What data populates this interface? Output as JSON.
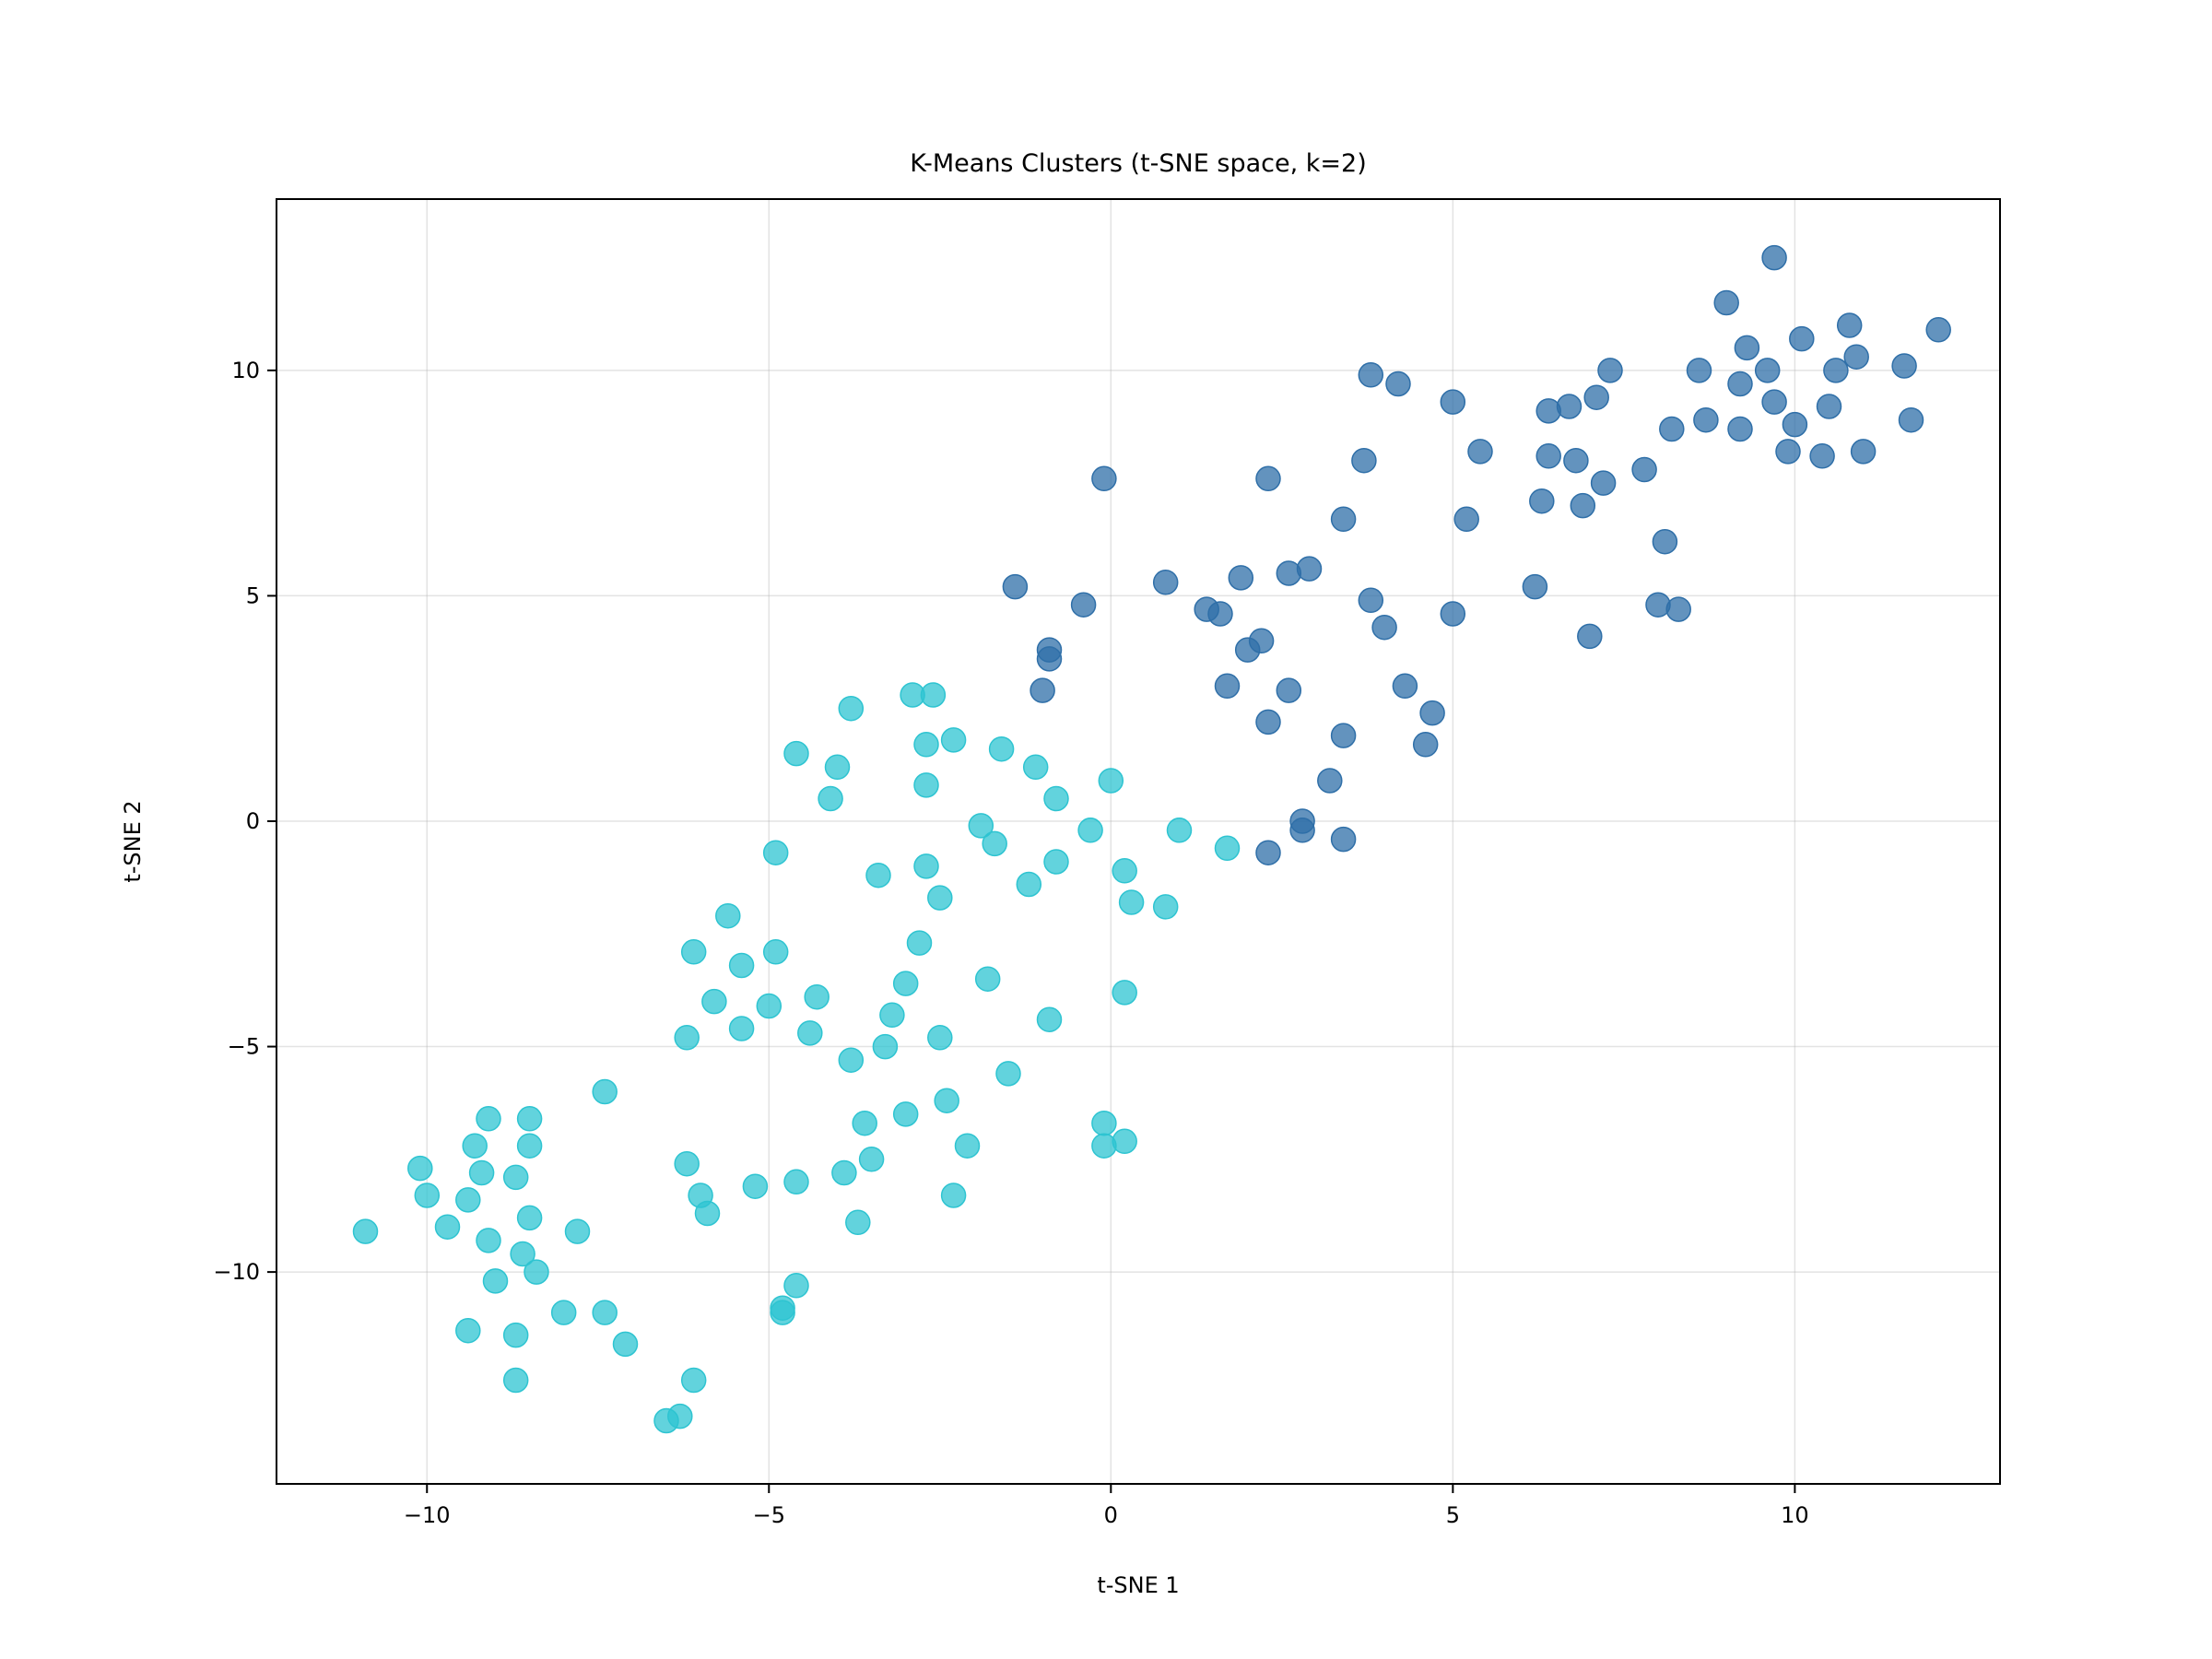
{
  "chart_data": {
    "type": "scatter",
    "title": "K-Means Clusters (t-SNE space, k=2)",
    "xlabel": "t-SNE 1",
    "ylabel": "t-SNE 2",
    "xlim": [
      -12.2,
      13.0
    ],
    "ylim": [
      -14.7,
      13.8
    ],
    "xticks": [
      -10,
      -5,
      0,
      5,
      10
    ],
    "yticks": [
      -10,
      -5,
      0,
      5,
      10
    ],
    "xtick_labels": [
      "−10",
      "−5",
      "0",
      "5",
      "10"
    ],
    "ytick_labels": [
      "−10",
      "−5",
      "0",
      "5",
      "10"
    ],
    "grid": true,
    "series": [
      {
        "color": "#2f6fa8",
        "points": [
          [
            9.7,
            12.5
          ],
          [
            9.0,
            11.5
          ],
          [
            10.8,
            11.0
          ],
          [
            12.1,
            10.9
          ],
          [
            10.1,
            10.7
          ],
          [
            9.3,
            10.5
          ],
          [
            10.9,
            10.3
          ],
          [
            11.6,
            10.1
          ],
          [
            7.3,
            10.0
          ],
          [
            8.6,
            10.0
          ],
          [
            9.6,
            10.0
          ],
          [
            10.6,
            10.0
          ],
          [
            3.8,
            9.9
          ],
          [
            4.2,
            9.7
          ],
          [
            9.2,
            9.7
          ],
          [
            7.1,
            9.4
          ],
          [
            9.7,
            9.3
          ],
          [
            5.0,
            9.3
          ],
          [
            6.7,
            9.2
          ],
          [
            6.4,
            9.1
          ],
          [
            10.5,
            9.2
          ],
          [
            8.7,
            8.9
          ],
          [
            10.0,
            8.8
          ],
          [
            11.7,
            8.9
          ],
          [
            8.2,
            8.7
          ],
          [
            9.2,
            8.7
          ],
          [
            5.4,
            8.2
          ],
          [
            9.9,
            8.2
          ],
          [
            10.4,
            8.1
          ],
          [
            11.0,
            8.2
          ],
          [
            6.4,
            8.1
          ],
          [
            6.8,
            8.0
          ],
          [
            3.7,
            8.0
          ],
          [
            7.8,
            7.8
          ],
          [
            -0.1,
            7.6
          ],
          [
            2.3,
            7.6
          ],
          [
            7.2,
            7.5
          ],
          [
            6.3,
            7.1
          ],
          [
            6.9,
            7.0
          ],
          [
            3.4,
            6.7
          ],
          [
            5.2,
            6.7
          ],
          [
            8.1,
            6.2
          ],
          [
            2.9,
            5.6
          ],
          [
            2.6,
            5.5
          ],
          [
            1.9,
            5.4
          ],
          [
            0.8,
            5.3
          ],
          [
            -1.4,
            5.2
          ],
          [
            6.2,
            5.2
          ],
          [
            -0.4,
            4.8
          ],
          [
            3.8,
            4.9
          ],
          [
            8.0,
            4.8
          ],
          [
            8.3,
            4.7
          ],
          [
            1.4,
            4.7
          ],
          [
            1.6,
            4.6
          ],
          [
            5.0,
            4.6
          ],
          [
            4.0,
            4.3
          ],
          [
            2.2,
            4.0
          ],
          [
            7.0,
            4.1
          ],
          [
            -0.9,
            3.8
          ],
          [
            2.0,
            3.8
          ],
          [
            -0.9,
            3.6
          ],
          [
            1.7,
            3.0
          ],
          [
            -1.0,
            2.9
          ],
          [
            2.6,
            2.9
          ],
          [
            4.3,
            3.0
          ],
          [
            4.7,
            2.4
          ],
          [
            2.3,
            2.2
          ],
          [
            3.4,
            1.9
          ],
          [
            4.6,
            1.7
          ],
          [
            3.2,
            0.9
          ],
          [
            2.8,
            0.0
          ],
          [
            2.8,
            -0.2
          ],
          [
            3.4,
            -0.4
          ],
          [
            2.3,
            -0.7
          ]
        ]
      },
      {
        "color": "#2ec4d1",
        "points": [
          [
            -2.9,
            2.8
          ],
          [
            -2.6,
            2.8
          ],
          [
            -3.8,
            2.5
          ],
          [
            -2.3,
            1.8
          ],
          [
            -2.7,
            1.7
          ],
          [
            -1.6,
            1.6
          ],
          [
            -4.6,
            1.5
          ],
          [
            -4.0,
            1.2
          ],
          [
            -1.1,
            1.2
          ],
          [
            0.0,
            0.9
          ],
          [
            -2.7,
            0.8
          ],
          [
            -4.1,
            0.5
          ],
          [
            -0.8,
            0.5
          ],
          [
            -1.9,
            -0.1
          ],
          [
            -0.3,
            -0.2
          ],
          [
            1.0,
            -0.2
          ],
          [
            -1.7,
            -0.5
          ],
          [
            1.7,
            -0.6
          ],
          [
            -4.9,
            -0.7
          ],
          [
            -0.8,
            -0.9
          ],
          [
            -2.7,
            -1.0
          ],
          [
            0.2,
            -1.1
          ],
          [
            -3.4,
            -1.2
          ],
          [
            -1.2,
            -1.4
          ],
          [
            -2.5,
            -1.7
          ],
          [
            0.3,
            -1.8
          ],
          [
            0.8,
            -1.9
          ],
          [
            -5.6,
            -2.1
          ],
          [
            -2.8,
            -2.7
          ],
          [
            -6.1,
            -2.9
          ],
          [
            -4.9,
            -2.9
          ],
          [
            -5.4,
            -3.2
          ],
          [
            -1.8,
            -3.5
          ],
          [
            -3.0,
            -3.6
          ],
          [
            0.2,
            -3.8
          ],
          [
            -4.3,
            -3.9
          ],
          [
            -5.8,
            -4.0
          ],
          [
            -5.0,
            -4.1
          ],
          [
            -3.2,
            -4.3
          ],
          [
            -0.9,
            -4.4
          ],
          [
            -5.4,
            -4.6
          ],
          [
            -4.4,
            -4.7
          ],
          [
            -6.2,
            -4.8
          ],
          [
            -2.5,
            -4.8
          ],
          [
            -3.3,
            -5.0
          ],
          [
            -3.8,
            -5.3
          ],
          [
            -1.5,
            -5.6
          ],
          [
            -7.4,
            -6.0
          ],
          [
            -2.4,
            -6.2
          ],
          [
            -3.0,
            -6.5
          ],
          [
            -9.1,
            -6.6
          ],
          [
            -8.5,
            -6.6
          ],
          [
            -3.6,
            -6.7
          ],
          [
            -0.1,
            -6.7
          ],
          [
            0.2,
            -7.1
          ],
          [
            -0.1,
            -7.2
          ],
          [
            -9.3,
            -7.2
          ],
          [
            -8.5,
            -7.2
          ],
          [
            -2.1,
            -7.2
          ],
          [
            -6.2,
            -7.6
          ],
          [
            -3.5,
            -7.5
          ],
          [
            -10.1,
            -7.7
          ],
          [
            -9.2,
            -7.8
          ],
          [
            -3.9,
            -7.8
          ],
          [
            -8.7,
            -7.9
          ],
          [
            -4.6,
            -8.0
          ],
          [
            -5.2,
            -8.1
          ],
          [
            -10.0,
            -8.3
          ],
          [
            -6.0,
            -8.3
          ],
          [
            -2.3,
            -8.3
          ],
          [
            -9.4,
            -8.4
          ],
          [
            -5.9,
            -8.7
          ],
          [
            -8.5,
            -8.8
          ],
          [
            -3.7,
            -8.9
          ],
          [
            -9.7,
            -9.0
          ],
          [
            -10.9,
            -9.1
          ],
          [
            -7.8,
            -9.1
          ],
          [
            -9.1,
            -9.3
          ],
          [
            -8.6,
            -9.6
          ],
          [
            -8.4,
            -10.0
          ],
          [
            -9.0,
            -10.2
          ],
          [
            -4.6,
            -10.3
          ],
          [
            -4.8,
            -10.8
          ],
          [
            -4.8,
            -10.9
          ],
          [
            -7.4,
            -10.9
          ],
          [
            -8.0,
            -10.9
          ],
          [
            -9.4,
            -11.3
          ],
          [
            -8.7,
            -11.4
          ],
          [
            -7.1,
            -11.6
          ],
          [
            -8.7,
            -12.4
          ],
          [
            -6.1,
            -12.4
          ],
          [
            -6.3,
            -13.2
          ],
          [
            -6.5,
            -13.3
          ]
        ]
      }
    ]
  }
}
